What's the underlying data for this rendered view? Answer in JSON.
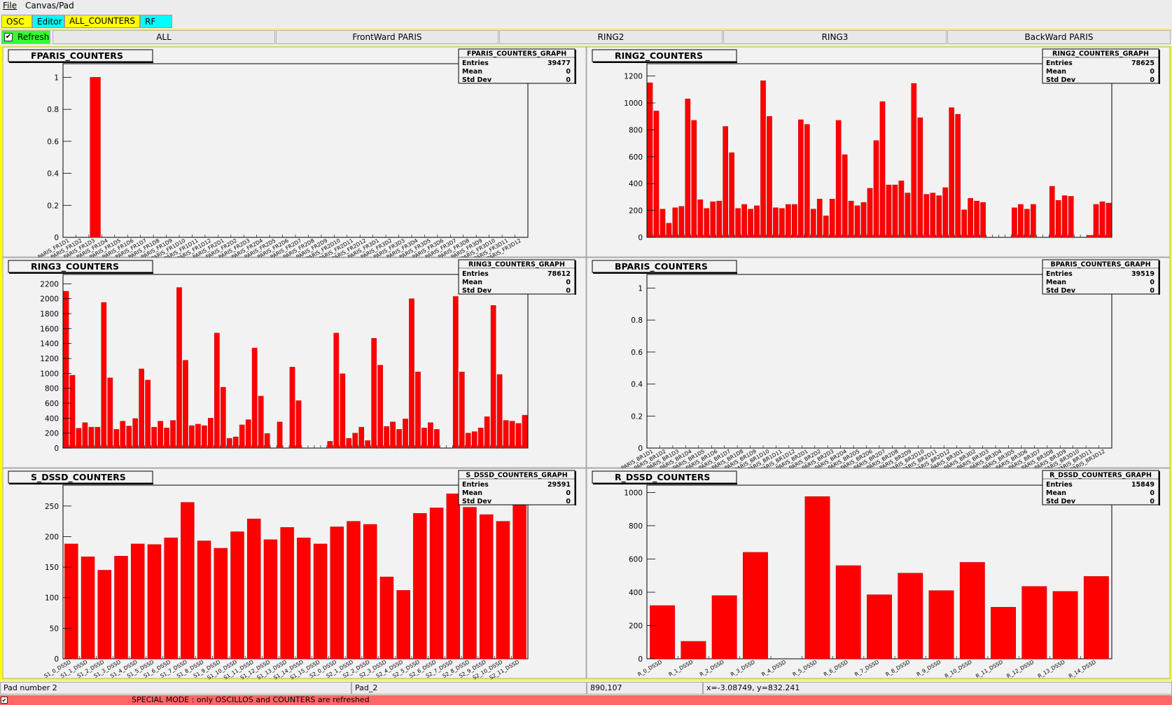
{
  "menu": [
    "File",
    "Canvas/Pad"
  ],
  "tabs": [
    "OSC",
    "Editor",
    "ALL_COUNTERS",
    "RF"
  ],
  "refresh": "Refresh",
  "buttons": [
    "ALL",
    "FrontWard PARIS",
    "RING2",
    "RING3",
    "BackWard PARIS"
  ],
  "chart_data": [
    {
      "type": "bar",
      "title": "FPARIS_COUNTERS",
      "stats_title": "FPARIS_COUNTERS_GRAPH",
      "stats": [
        {
          "label": "Entries",
          "value": 39477
        },
        {
          "label": "Mean",
          "value": 0
        },
        {
          "label": "Std Dev",
          "value": 0
        }
      ],
      "categories": [
        "PARIS_FR1D1",
        "PARIS_FR1D2",
        "PARIS_FR1D3",
        "PARIS_FR1D4",
        "PARIS_FR1D5",
        "PARIS_FR1D6",
        "PARIS_FR1D7",
        "PARIS_FR1D8",
        "PARIS_FR1D9",
        "PARIS_FR1D10",
        "PARIS_FR1D11",
        "PARIS_FR1D12",
        "PARIS_FR2D1",
        "PARIS_FR2D2",
        "PARIS_FR2D3",
        "PARIS_FR2D4",
        "PARIS_FR2D5",
        "PARIS_FR2D6",
        "PARIS_FR2D7",
        "PARIS_FR2D8",
        "PARIS_FR2D9",
        "PARIS_FR2D10",
        "PARIS_FR2D11",
        "PARIS_FR2D12",
        "PARIS_FR3D1",
        "PARIS_FR3D2",
        "PARIS_FR3D3",
        "PARIS_FR3D4",
        "PARIS_FR3D5",
        "PARIS_FR3D6",
        "PARIS_FR3D7",
        "PARIS_FR3D8",
        "PARIS_FR3D9",
        "PARIS_FR3D10",
        "PARIS_FR3D11",
        "PARIS_FR3D12"
      ],
      "values": [
        0,
        0,
        1,
        0,
        0,
        0,
        0,
        0,
        0,
        0,
        0,
        0,
        0,
        0,
        0,
        0,
        0,
        0,
        0,
        0,
        0,
        0,
        0,
        0,
        0,
        0,
        0,
        0,
        0,
        0,
        0,
        0,
        0,
        0,
        0,
        0
      ],
      "color": "#ff0000",
      "ylim": [
        0,
        1.05
      ],
      "yticks": [
        0,
        0.2,
        0.4,
        0.6,
        0.8,
        1
      ]
    },
    {
      "type": "bar",
      "title": "RING2_COUNTERS",
      "stats_title": "RING2_COUNTERS_GRAPH",
      "stats": [
        {
          "label": "Entries",
          "value": 78625
        },
        {
          "label": "Mean",
          "value": 0
        },
        {
          "label": "Std Dev",
          "value": 0
        }
      ],
      "values": [
        1150,
        940,
        210,
        105,
        220,
        230,
        1030,
        870,
        280,
        215,
        265,
        270,
        825,
        630,
        215,
        245,
        210,
        235,
        1165,
        900,
        220,
        215,
        245,
        245,
        875,
        840,
        210,
        285,
        160,
        285,
        870,
        615,
        270,
        235,
        260,
        365,
        720,
        1010,
        390,
        390,
        420,
        330,
        1145,
        890,
        320,
        330,
        310,
        370,
        965,
        915,
        205,
        290,
        270,
        260,
        0,
        0,
        0,
        0,
        220,
        245,
        210,
        245,
        0,
        0,
        380,
        275,
        310,
        305,
        0,
        0,
        15,
        245,
        265,
        255
      ],
      "color": "#ff0000",
      "ylim": [
        0,
        1250
      ],
      "yticks": [
        0,
        200,
        400,
        600,
        800,
        1000,
        1200
      ]
    },
    {
      "type": "bar",
      "title": "RING3_COUNTERS",
      "stats_title": "RING3_COUNTERS_GRAPH",
      "stats": [
        {
          "label": "Entries",
          "value": 78612
        },
        {
          "label": "Mean",
          "value": 0
        },
        {
          "label": "Std Dev",
          "value": 0
        }
      ],
      "values": [
        2100,
        975,
        265,
        340,
        280,
        280,
        1950,
        940,
        250,
        360,
        295,
        395,
        1060,
        910,
        280,
        360,
        270,
        370,
        2150,
        1175,
        300,
        320,
        300,
        400,
        1540,
        815,
        130,
        150,
        310,
        380,
        1340,
        695,
        195,
        0,
        350,
        0,
        1085,
        635,
        0,
        0,
        0,
        0,
        90,
        1540,
        995,
        130,
        200,
        280,
        100,
        1470,
        1110,
        290,
        350,
        250,
        390,
        2000,
        1020,
        270,
        340,
        250,
        0,
        0,
        2030,
        1020,
        200,
        220,
        270,
        420,
        1910,
        985,
        370,
        360,
        330,
        440
      ],
      "color": "#ff0000",
      "ylim": [
        0,
        2250
      ],
      "yticks": [
        0,
        200,
        400,
        600,
        800,
        1000,
        1200,
        1400,
        1600,
        1800,
        2000,
        2200
      ]
    },
    {
      "type": "bar",
      "title": "BPARIS_COUNTERS",
      "stats_title": "BPARIS_COUNTERS_GRAPH",
      "stats": [
        {
          "label": "Entries",
          "value": 39519
        },
        {
          "label": "Mean",
          "value": 0
        },
        {
          "label": "Std Dev",
          "value": 0
        }
      ],
      "categories": [
        "PARIS_BR1D1",
        "PARIS_BR1D2",
        "PARIS_BR1D3",
        "PARIS_BR1D4",
        "PARIS_BR1D5",
        "PARIS_BR1D6",
        "PARIS_BR1D7",
        "PARIS_BR1D8",
        "PARIS_BR1D9",
        "PARIS_BR1D10",
        "PARIS_BR1D11",
        "PARIS_BR1D12",
        "PARIS_BR2D1",
        "PARIS_BR2D2",
        "PARIS_BR2D3",
        "PARIS_BR2D4",
        "PARIS_BR2D5",
        "PARIS_BR2D6",
        "PARIS_BR2D7",
        "PARIS_BR2D8",
        "PARIS_BR2D9",
        "PARIS_BR2D10",
        "PARIS_BR2D11",
        "PARIS_BR2D12",
        "PARIS_BR3D1",
        "PARIS_BR3D2",
        "PARIS_BR3D3",
        "PARIS_BR3D4",
        "PARIS_BR3D5",
        "PARIS_BR3D6",
        "PARIS_BR3D7",
        "PARIS_BR3D8",
        "PARIS_BR3D9",
        "PARIS_BR3D10",
        "PARIS_BR3D11",
        "PARIS_BR3D12"
      ],
      "values": [
        0,
        0,
        0,
        0,
        0,
        0,
        0,
        0,
        0,
        0,
        0,
        0,
        0,
        0,
        0,
        0,
        0,
        0,
        0,
        0,
        0,
        0,
        0,
        0,
        0,
        0,
        0,
        0,
        0,
        0,
        0,
        0,
        0,
        0,
        0,
        0
      ],
      "color": "#ff0000",
      "ylim": [
        0,
        1.05
      ],
      "yticks": [
        0,
        0.2,
        0.4,
        0.6,
        0.8,
        1
      ]
    },
    {
      "type": "bar",
      "title": "S_DSSD_COUNTERS",
      "stats_title": "S_DSSD_COUNTERS_GRAPH",
      "stats": [
        {
          "label": "Entries",
          "value": 29591
        },
        {
          "label": "Mean",
          "value": 0
        },
        {
          "label": "Std Dev",
          "value": 0
        }
      ],
      "categories": [
        "S1_0_DSSD",
        "S1_1_DSSD",
        "S1_2_DSSD",
        "S1_3_DSSD",
        "S1_4_DSSD",
        "S1_5_DSSD",
        "S1_6_DSSD",
        "S1_7_DSSD",
        "S1_8_DSSD",
        "S1_9_DSSD",
        "S1_10_DSSD",
        "S1_11_DSSD",
        "S1_12_DSSD",
        "S1_13_DSSD",
        "S1_14_DSSD",
        "S1_15_DSSD",
        "S2_0_DSSD",
        "S2_1_DSSD",
        "S2_2_DSSD",
        "S2_3_DSSD",
        "S2_4_DSSD",
        "S2_5_DSSD",
        "S2_6_DSSD",
        "S2_7_DSSD",
        "S2_8_DSSD",
        "S2_9_DSSD",
        "S2_10_DSSD",
        "S2_11_DSSD"
      ],
      "values": [
        188,
        167,
        145,
        168,
        188,
        187,
        198,
        256,
        193,
        181,
        208,
        229,
        195,
        215,
        198,
        188,
        216,
        225,
        220,
        134,
        112,
        238,
        247,
        270,
        248,
        236,
        225,
        270
      ],
      "color": "#ff0000",
      "ylim": [
        0,
        275
      ],
      "yticks": [
        0,
        50,
        100,
        150,
        200,
        250
      ]
    },
    {
      "type": "bar",
      "title": "R_DSSD_COUNTERS",
      "stats_title": "R_DSSD_COUNTERS_GRAPH",
      "stats": [
        {
          "label": "Entries",
          "value": 15849
        },
        {
          "label": "Mean",
          "value": 0
        },
        {
          "label": "Std Dev",
          "value": 0
        }
      ],
      "categories": [
        "R_0_DSSD",
        "R_1_DSSD",
        "R_2_DSSD",
        "R_3_DSSD",
        "R_4_DSSD",
        "R_5_DSSD",
        "R_6_DSSD",
        "R_7_DSSD",
        "R_8_DSSD",
        "R_9_DSSD",
        "R_10_DSSD",
        "R_11_DSSD",
        "R_12_DSSD",
        "R_13_DSSD",
        "R_14_DSSD"
      ],
      "values": [
        320,
        105,
        380,
        640,
        0,
        975,
        560,
        385,
        515,
        410,
        580,
        310,
        435,
        405,
        495
      ],
      "color": "#ff0000",
      "ylim": [
        0,
        1010
      ],
      "yticks": [
        0,
        200,
        400,
        600,
        800,
        1000
      ]
    }
  ],
  "status": [
    "Pad number 2",
    "Pad_2",
    "890,107",
    "x=-3.08749, y=832.241"
  ],
  "special_mode": "SPECIAL MODE : only OSCILLOS and COUNTERS are refreshed"
}
